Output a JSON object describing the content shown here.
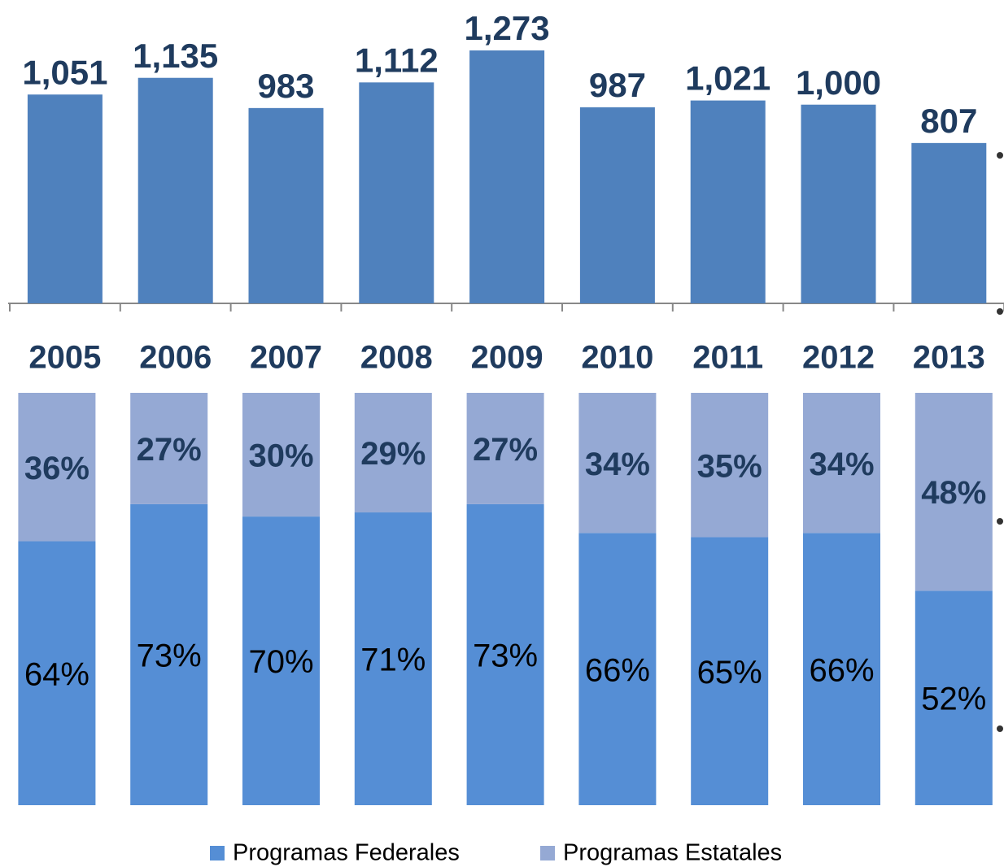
{
  "chart_data": [
    {
      "type": "bar",
      "categories": [
        "2005",
        "2006",
        "2007",
        "2008",
        "2009",
        "2010",
        "2011",
        "2012",
        "2013"
      ],
      "values": [
        1051,
        1135,
        983,
        1112,
        1273,
        987,
        1021,
        1000,
        807
      ],
      "value_labels": [
        "1,051",
        "1,135",
        "983",
        "1,112",
        "1,273",
        "987",
        "1,021",
        "1,000",
        "807"
      ],
      "color": "#4f81bd"
    },
    {
      "type": "stacked_bar",
      "series": [
        {
          "name": "Programas Federales",
          "color": "#558ed5",
          "values": [
            64,
            73,
            70,
            71,
            73,
            66,
            65,
            66,
            52
          ],
          "value_labels": [
            "64%",
            "73%",
            "70%",
            "71%",
            "73%",
            "66%",
            "65%",
            "66%",
            "52%"
          ]
        },
        {
          "name": "Programas Estatales",
          "color": "#95a9d4",
          "values": [
            36,
            27,
            30,
            29,
            27,
            34,
            35,
            34,
            48
          ],
          "value_labels": [
            "36%",
            "27%",
            "30%",
            "29%",
            "27%",
            "34%",
            "35%",
            "34%",
            "48%"
          ]
        }
      ]
    }
  ]
}
